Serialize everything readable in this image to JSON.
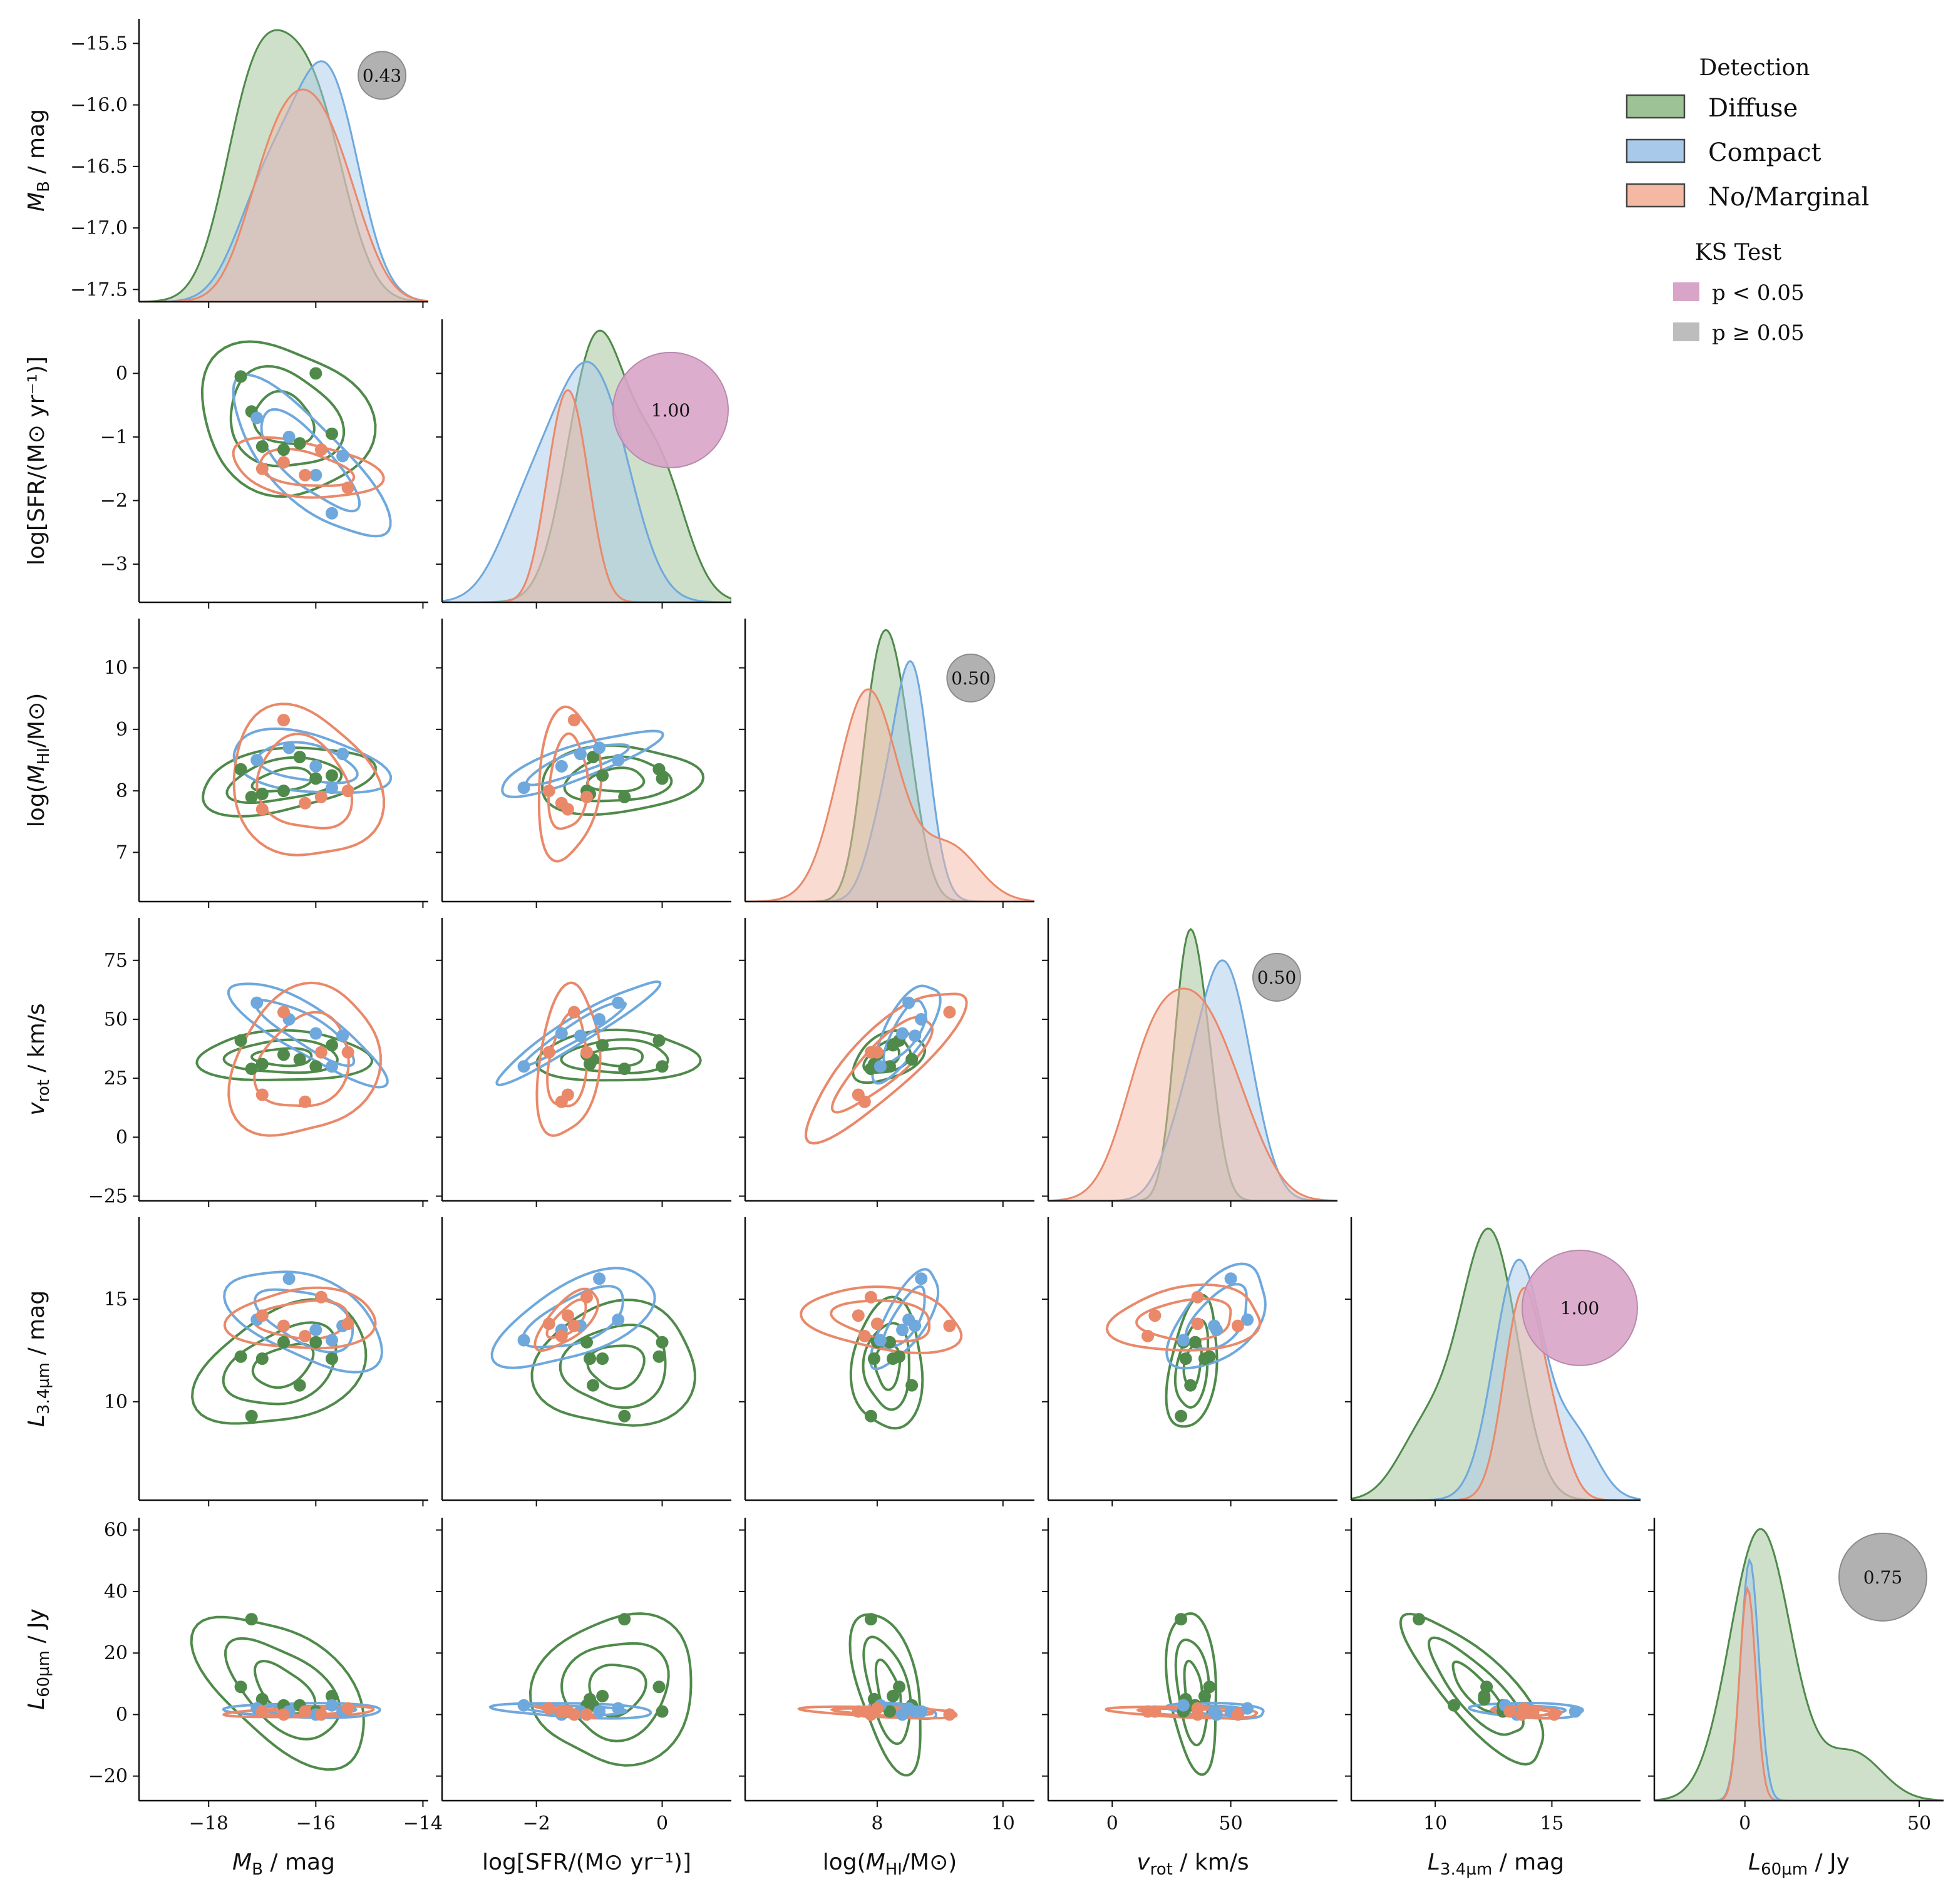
{
  "chart_data": {
    "type": "pairplot",
    "title": "",
    "variables": [
      {
        "key": "MB",
        "label": "M_B / mag",
        "ylabel_txt": "M_B / mag",
        "xlabel_txt": "M_B / mag",
        "xlim": [
          -19.3,
          -13.9
        ],
        "xticks": [
          -18,
          -16,
          -14
        ],
        "xticklabels": [
          "−18",
          "−16",
          "−14"
        ],
        "ylim": [
          -17.6,
          -15.3
        ],
        "yticks": [
          -17.5,
          -17.0,
          -16.5,
          -16.0,
          -15.5
        ],
        "yticklabels": [
          "−17.5",
          "−17.0",
          "−16.5",
          "−16.0",
          "−15.5"
        ]
      },
      {
        "key": "SFR",
        "label": "log[SFR/(M⊙ yr⁻¹)]",
        "ylabel_txt": "log[SFR/(M⊙ yr⁻¹)]",
        "xlabel_txt": "log[SFR/(M⊙ yr⁻¹)]",
        "xlim": [
          -3.5,
          1.1
        ],
        "xticks": [
          -2,
          0
        ],
        "xticklabels": [
          "−2",
          "0"
        ],
        "ylim": [
          -3.6,
          0.85
        ],
        "yticks": [
          -3,
          -2,
          -1,
          0
        ],
        "yticklabels": [
          "−3",
          "−2",
          "−1",
          "0"
        ]
      },
      {
        "key": "MHI",
        "label": "log(M_HI/M⊙)",
        "ylabel_txt": "log(M_HI/M⊙)",
        "xlabel_txt": "log(M_HI/M⊙)",
        "xlim": [
          5.9,
          10.5
        ],
        "xticks": [
          8,
          10
        ],
        "xticklabels": [
          "8",
          "10"
        ],
        "ylim": [
          6.2,
          10.8
        ],
        "yticks": [
          7,
          8,
          9,
          10
        ],
        "yticklabels": [
          "7",
          "8",
          "9",
          "10"
        ]
      },
      {
        "key": "vrot",
        "label": "v_rot / km/s",
        "ylabel_txt": "v_rot / km/s",
        "xlabel_txt": "v_rot / km/s",
        "xlim": [
          -27,
          95
        ],
        "xticks": [
          0,
          50
        ],
        "xticklabels": [
          "0",
          "50"
        ],
        "ylim": [
          -27,
          93
        ],
        "yticks": [
          -25,
          0,
          25,
          50,
          75
        ],
        "yticklabels": [
          "−25",
          "0",
          "25",
          "50",
          "75"
        ]
      },
      {
        "key": "L34",
        "label": "L_3.4µm / mag",
        "ylabel_txt": "L_3.4µm / mag",
        "xlabel_txt": "L_3.4µm / mag",
        "xlim": [
          6.4,
          18.8
        ],
        "xticks": [
          10,
          15
        ],
        "xticklabels": [
          "10",
          "15"
        ],
        "ylim": [
          5.2,
          19.0
        ],
        "yticks": [
          10,
          15
        ],
        "yticklabels": [
          "10",
          "15"
        ]
      },
      {
        "key": "L60",
        "label": "L_60µm / Jy",
        "ylabel_txt": "L_60µm / Jy",
        "xlabel_txt": "L_60µm / Jy",
        "xlim": [
          -26,
          57
        ],
        "xticks": [
          0,
          50
        ],
        "xticklabels": [
          "0",
          "50"
        ],
        "ylim": [
          -28,
          64
        ],
        "yticks": [
          -20,
          0,
          20,
          40,
          60
        ],
        "yticklabels": [
          "−20",
          "0",
          "20",
          "40",
          "60"
        ]
      }
    ],
    "legend": {
      "title": "Detection",
      "groups": [
        {
          "name": "Diffuse",
          "color": "#4f8a4a",
          "fill": "#9dc296"
        },
        {
          "name": "Compact",
          "color": "#6fa8dc",
          "fill": "#a8c9ea"
        },
        {
          "name": "No/Marginal",
          "color": "#e9896a",
          "fill": "#f4b8a3"
        }
      ],
      "ks_title": "KS Test",
      "ks_entries": [
        {
          "label": "p < 0.05",
          "color": "#d8a4c8"
        },
        {
          "label": "p ≥ 0.05",
          "color": "#bdbdbd"
        }
      ]
    },
    "ks_values": [
      {
        "panel": "MB",
        "value": "0.43",
        "significant": false,
        "size": "small"
      },
      {
        "panel": "SFR",
        "value": "1.00",
        "significant": true,
        "size": "large"
      },
      {
        "panel": "MHI",
        "value": "0.50",
        "significant": false,
        "size": "small"
      },
      {
        "panel": "vrot",
        "value": "0.50",
        "significant": false,
        "size": "small"
      },
      {
        "panel": "L34",
        "value": "1.00",
        "significant": true,
        "size": "large"
      },
      {
        "panel": "L60",
        "value": "0.75",
        "significant": false,
        "size": "medium"
      }
    ],
    "points": {
      "Diffuse": [
        {
          "MB": -17.4,
          "SFR": -0.05,
          "MHI": 8.35,
          "vrot": 41,
          "L34": 12.2,
          "L60": 9
        },
        {
          "MB": -17.0,
          "SFR": -1.15,
          "MHI": 7.95,
          "vrot": 31,
          "L34": 12.1,
          "L60": 5
        },
        {
          "MB": -16.6,
          "SFR": -1.2,
          "MHI": 8.0,
          "vrot": 35,
          "L34": 12.9,
          "L60": 3
        },
        {
          "MB": -16.3,
          "SFR": -1.1,
          "MHI": 8.55,
          "vrot": 33,
          "L34": 10.8,
          "L60": 3
        },
        {
          "MB": -15.7,
          "SFR": -0.95,
          "MHI": 8.25,
          "vrot": 39,
          "L34": 12.1,
          "L60": 6
        },
        {
          "MB": -17.2,
          "SFR": -0.6,
          "MHI": 7.9,
          "vrot": 29,
          "L34": 9.3,
          "L60": 31
        },
        {
          "MB": -16.0,
          "SFR": 0.0,
          "MHI": 8.2,
          "vrot": 30,
          "L34": 12.9,
          "L60": 1
        }
      ],
      "Compact": [
        {
          "MB": -17.1,
          "SFR": -0.7,
          "MHI": 8.5,
          "vrot": 57,
          "L34": 14.0,
          "L60": 2
        },
        {
          "MB": -16.5,
          "SFR": -1.0,
          "MHI": 8.7,
          "vrot": 50,
          "L34": 16.0,
          "L60": 1
        },
        {
          "MB": -16.0,
          "SFR": -1.6,
          "MHI": 8.4,
          "vrot": 44,
          "L34": 13.5,
          "L60": 0
        },
        {
          "MB": -15.7,
          "SFR": -2.2,
          "MHI": 8.05,
          "vrot": 30,
          "L34": 13.0,
          "L60": 3
        },
        {
          "MB": -15.5,
          "SFR": -1.3,
          "MHI": 8.6,
          "vrot": 43,
          "L34": 13.7,
          "L60": 1
        }
      ],
      "No/Marginal": [
        {
          "MB": -17.0,
          "SFR": -1.5,
          "MHI": 7.7,
          "vrot": 18,
          "L34": 14.2,
          "L60": 1
        },
        {
          "MB": -16.6,
          "SFR": -1.4,
          "MHI": 9.15,
          "vrot": 53,
          "L34": 13.7,
          "L60": 0
        },
        {
          "MB": -16.2,
          "SFR": -1.6,
          "MHI": 7.8,
          "vrot": 15,
          "L34": 13.2,
          "L60": 1
        },
        {
          "MB": -15.9,
          "SFR": -1.2,
          "MHI": 7.9,
          "vrot": 36,
          "L34": 15.1,
          "L60": 0
        },
        {
          "MB": -15.4,
          "SFR": -1.8,
          "MHI": 8.0,
          "vrot": 36,
          "L34": 13.8,
          "L60": 2
        }
      ]
    }
  }
}
